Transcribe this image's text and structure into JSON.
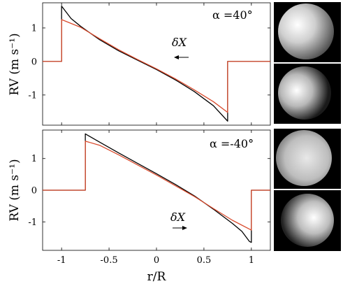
{
  "colors": {
    "model_black": "#000000",
    "model_red": "#d94a2c",
    "axes": "#000000",
    "frame": "#ffffff",
    "panel_bg": "#000000"
  },
  "chart_data": [
    {
      "type": "line",
      "panel": "top",
      "annotation": "α =40°",
      "arrow_label": "δX",
      "arrow_direction": "left",
      "ylabel": "RV  (m s⁻¹)",
      "xlabel": "",
      "xlim": [
        -1.2,
        1.2
      ],
      "ylim": [
        -1.9,
        1.75
      ],
      "xticks": [
        -1,
        -0.5,
        0,
        0.5,
        1
      ],
      "xtick_labels": [
        "",
        "",
        "",
        "",
        ""
      ],
      "yticks": [
        -1,
        0,
        1
      ],
      "ytick_labels": [
        "-1",
        "0",
        "1"
      ],
      "series": [
        {
          "color": "#000000",
          "x": [
            -1.2,
            -1.0,
            -1.0,
            -0.9,
            -0.8,
            -0.6,
            -0.4,
            -0.2,
            0.0,
            0.2,
            0.4,
            0.6,
            0.75,
            0.75,
            1.2
          ],
          "y": [
            0,
            0,
            1.65,
            1.28,
            1.05,
            0.65,
            0.32,
            0.04,
            -0.24,
            -0.55,
            -0.9,
            -1.32,
            -1.78,
            0,
            0
          ]
        },
        {
          "color": "#d94a2c",
          "x": [
            -1.2,
            -1.0,
            -1.0,
            -0.8,
            -0.6,
            -0.4,
            -0.2,
            0.0,
            0.2,
            0.4,
            0.6,
            0.75,
            0.75,
            1.2
          ],
          "y": [
            0,
            0,
            1.25,
            1.02,
            0.68,
            0.35,
            0.06,
            -0.22,
            -0.52,
            -0.85,
            -1.2,
            -1.52,
            0,
            0
          ]
        }
      ]
    },
    {
      "type": "line",
      "panel": "bottom",
      "annotation": "α =-40°",
      "arrow_label": "δX",
      "arrow_direction": "right",
      "ylabel": "RV  (m s⁻¹)",
      "xlabel": "r/R",
      "xlim": [
        -1.2,
        1.2
      ],
      "ylim": [
        -1.9,
        1.9
      ],
      "xticks": [
        -1,
        -0.5,
        0,
        0.5,
        1
      ],
      "xtick_labels": [
        "-1",
        "-0.5",
        "0",
        "0.5",
        "1"
      ],
      "yticks": [
        -1,
        0,
        1
      ],
      "ytick_labels": [
        "-1",
        "0",
        "1"
      ],
      "series": [
        {
          "color": "#000000",
          "x": [
            -1.2,
            -0.75,
            -0.75,
            -0.6,
            -0.4,
            -0.2,
            0.0,
            0.2,
            0.4,
            0.6,
            0.8,
            0.9,
            0.98,
            1.0,
            1.0,
            1.2
          ],
          "y": [
            0,
            0,
            1.78,
            1.52,
            1.18,
            0.85,
            0.52,
            0.18,
            -0.18,
            -0.6,
            -1.05,
            -1.3,
            -1.62,
            -1.65,
            0,
            0
          ]
        },
        {
          "color": "#d94a2c",
          "x": [
            -1.2,
            -0.75,
            -0.75,
            -0.6,
            -0.4,
            -0.2,
            0.0,
            0.2,
            0.4,
            0.6,
            0.8,
            1.0,
            1.0,
            1.2
          ],
          "y": [
            0,
            0,
            1.55,
            1.42,
            1.12,
            0.8,
            0.48,
            0.14,
            -0.2,
            -0.58,
            -0.95,
            -1.26,
            0,
            0
          ]
        }
      ]
    }
  ]
}
